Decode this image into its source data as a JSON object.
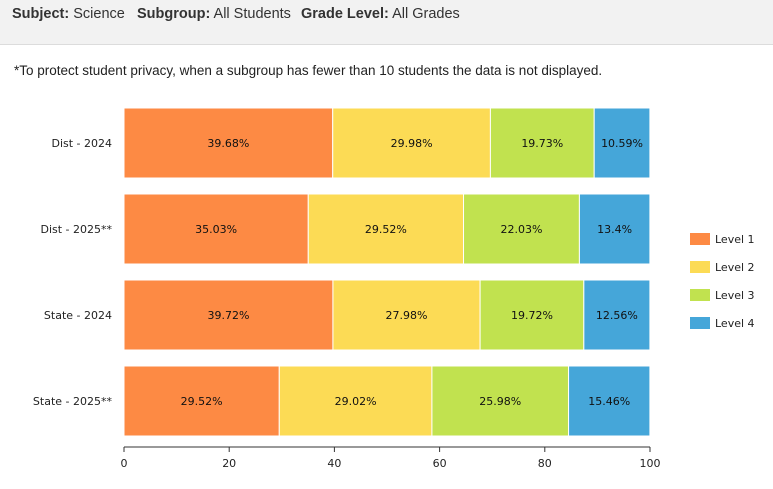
{
  "filters": [
    {
      "label": "Subject:",
      "value": "Science"
    },
    {
      "label": "Subgroup:",
      "value": "All Students"
    },
    {
      "label": "Grade Level:",
      "value": "All Grades"
    }
  ],
  "privacy_note": "*To protect student privacy, when a subgroup has fewer than 10 students the data is not displayed.",
  "chart_data": {
    "type": "bar",
    "orientation": "horizontal",
    "stacked": true,
    "categories": [
      "Dist - 2024",
      "Dist - 2025**",
      "State - 2024",
      "State - 2025**"
    ],
    "series": [
      {
        "name": "Level 1",
        "color": "#fd8a44",
        "values": [
          39.68,
          35.03,
          39.72,
          29.52
        ],
        "labels": [
          "39.68%",
          "35.03%",
          "39.72%",
          "29.52%"
        ]
      },
      {
        "name": "Level 2",
        "color": "#fcdb55",
        "values": [
          29.98,
          29.52,
          27.98,
          29.02
        ],
        "labels": [
          "29.98%",
          "29.52%",
          "27.98%",
          "29.02%"
        ]
      },
      {
        "name": "Level 3",
        "color": "#c1e24f",
        "values": [
          19.73,
          22.03,
          19.72,
          25.98
        ],
        "labels": [
          "19.73%",
          "22.03%",
          "19.72%",
          "25.98%"
        ]
      },
      {
        "name": "Level 4",
        "color": "#45a6d9",
        "values": [
          10.59,
          13.4,
          12.56,
          15.46
        ],
        "labels": [
          "10.59%",
          "13.4%",
          "12.56%",
          "15.46%"
        ]
      }
    ],
    "xlim": [
      0,
      100
    ],
    "xticks": [
      "0",
      "20",
      "40",
      "60",
      "80",
      "100"
    ],
    "legend_position": "right",
    "title": "",
    "xlabel": "",
    "ylabel": ""
  }
}
